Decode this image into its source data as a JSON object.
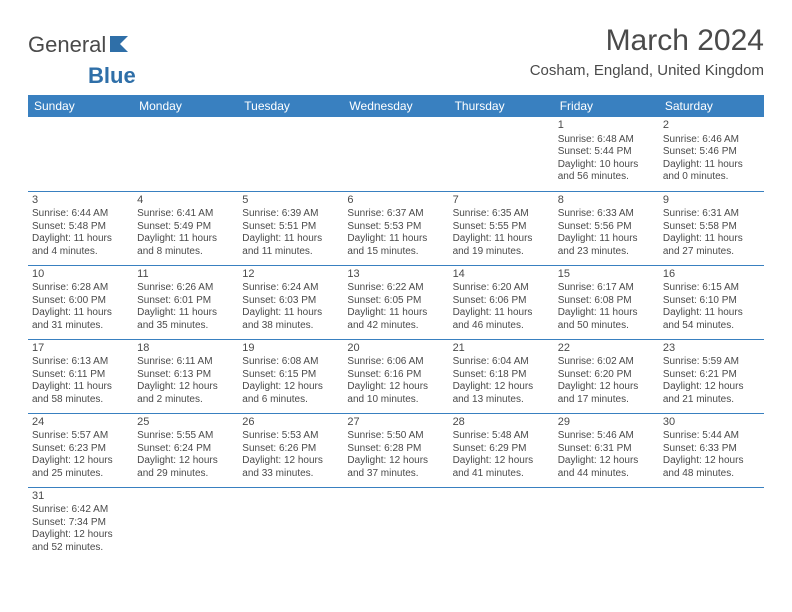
{
  "logo": {
    "text1": "General",
    "text2": "Blue"
  },
  "title": "March 2024",
  "location": "Cosham, England, United Kingdom",
  "weekdays": [
    "Sunday",
    "Monday",
    "Tuesday",
    "Wednesday",
    "Thursday",
    "Friday",
    "Saturday"
  ],
  "colors": {
    "header_bg": "#3980c0",
    "header_fg": "#ffffff",
    "text": "#4a4a4a",
    "rule": "#3980c0",
    "logo_accent": "#2f6fa8"
  },
  "typography": {
    "title_fontsize": 30,
    "location_fontsize": 15,
    "weekday_fontsize": 12,
    "daynum_fontsize": 11,
    "body_fontsize": 10
  },
  "layout": {
    "first_weekday_index": 5,
    "days_in_month": 31,
    "columns": 7
  },
  "days": [
    {
      "n": 1,
      "sunrise": "6:48 AM",
      "sunset": "5:44 PM",
      "daylight": "10 hours and 56 minutes."
    },
    {
      "n": 2,
      "sunrise": "6:46 AM",
      "sunset": "5:46 PM",
      "daylight": "11 hours and 0 minutes."
    },
    {
      "n": 3,
      "sunrise": "6:44 AM",
      "sunset": "5:48 PM",
      "daylight": "11 hours and 4 minutes."
    },
    {
      "n": 4,
      "sunrise": "6:41 AM",
      "sunset": "5:49 PM",
      "daylight": "11 hours and 8 minutes."
    },
    {
      "n": 5,
      "sunrise": "6:39 AM",
      "sunset": "5:51 PM",
      "daylight": "11 hours and 11 minutes."
    },
    {
      "n": 6,
      "sunrise": "6:37 AM",
      "sunset": "5:53 PM",
      "daylight": "11 hours and 15 minutes."
    },
    {
      "n": 7,
      "sunrise": "6:35 AM",
      "sunset": "5:55 PM",
      "daylight": "11 hours and 19 minutes."
    },
    {
      "n": 8,
      "sunrise": "6:33 AM",
      "sunset": "5:56 PM",
      "daylight": "11 hours and 23 minutes."
    },
    {
      "n": 9,
      "sunrise": "6:31 AM",
      "sunset": "5:58 PM",
      "daylight": "11 hours and 27 minutes."
    },
    {
      "n": 10,
      "sunrise": "6:28 AM",
      "sunset": "6:00 PM",
      "daylight": "11 hours and 31 minutes."
    },
    {
      "n": 11,
      "sunrise": "6:26 AM",
      "sunset": "6:01 PM",
      "daylight": "11 hours and 35 minutes."
    },
    {
      "n": 12,
      "sunrise": "6:24 AM",
      "sunset": "6:03 PM",
      "daylight": "11 hours and 38 minutes."
    },
    {
      "n": 13,
      "sunrise": "6:22 AM",
      "sunset": "6:05 PM",
      "daylight": "11 hours and 42 minutes."
    },
    {
      "n": 14,
      "sunrise": "6:20 AM",
      "sunset": "6:06 PM",
      "daylight": "11 hours and 46 minutes."
    },
    {
      "n": 15,
      "sunrise": "6:17 AM",
      "sunset": "6:08 PM",
      "daylight": "11 hours and 50 minutes."
    },
    {
      "n": 16,
      "sunrise": "6:15 AM",
      "sunset": "6:10 PM",
      "daylight": "11 hours and 54 minutes."
    },
    {
      "n": 17,
      "sunrise": "6:13 AM",
      "sunset": "6:11 PM",
      "daylight": "11 hours and 58 minutes."
    },
    {
      "n": 18,
      "sunrise": "6:11 AM",
      "sunset": "6:13 PM",
      "daylight": "12 hours and 2 minutes."
    },
    {
      "n": 19,
      "sunrise": "6:08 AM",
      "sunset": "6:15 PM",
      "daylight": "12 hours and 6 minutes."
    },
    {
      "n": 20,
      "sunrise": "6:06 AM",
      "sunset": "6:16 PM",
      "daylight": "12 hours and 10 minutes."
    },
    {
      "n": 21,
      "sunrise": "6:04 AM",
      "sunset": "6:18 PM",
      "daylight": "12 hours and 13 minutes."
    },
    {
      "n": 22,
      "sunrise": "6:02 AM",
      "sunset": "6:20 PM",
      "daylight": "12 hours and 17 minutes."
    },
    {
      "n": 23,
      "sunrise": "5:59 AM",
      "sunset": "6:21 PM",
      "daylight": "12 hours and 21 minutes."
    },
    {
      "n": 24,
      "sunrise": "5:57 AM",
      "sunset": "6:23 PM",
      "daylight": "12 hours and 25 minutes."
    },
    {
      "n": 25,
      "sunrise": "5:55 AM",
      "sunset": "6:24 PM",
      "daylight": "12 hours and 29 minutes."
    },
    {
      "n": 26,
      "sunrise": "5:53 AM",
      "sunset": "6:26 PM",
      "daylight": "12 hours and 33 minutes."
    },
    {
      "n": 27,
      "sunrise": "5:50 AM",
      "sunset": "6:28 PM",
      "daylight": "12 hours and 37 minutes."
    },
    {
      "n": 28,
      "sunrise": "5:48 AM",
      "sunset": "6:29 PM",
      "daylight": "12 hours and 41 minutes."
    },
    {
      "n": 29,
      "sunrise": "5:46 AM",
      "sunset": "6:31 PM",
      "daylight": "12 hours and 44 minutes."
    },
    {
      "n": 30,
      "sunrise": "5:44 AM",
      "sunset": "6:33 PM",
      "daylight": "12 hours and 48 minutes."
    },
    {
      "n": 31,
      "sunrise": "6:42 AM",
      "sunset": "7:34 PM",
      "daylight": "12 hours and 52 minutes."
    }
  ],
  "labels": {
    "sunrise_prefix": "Sunrise: ",
    "sunset_prefix": "Sunset: ",
    "daylight_prefix": "Daylight: "
  }
}
